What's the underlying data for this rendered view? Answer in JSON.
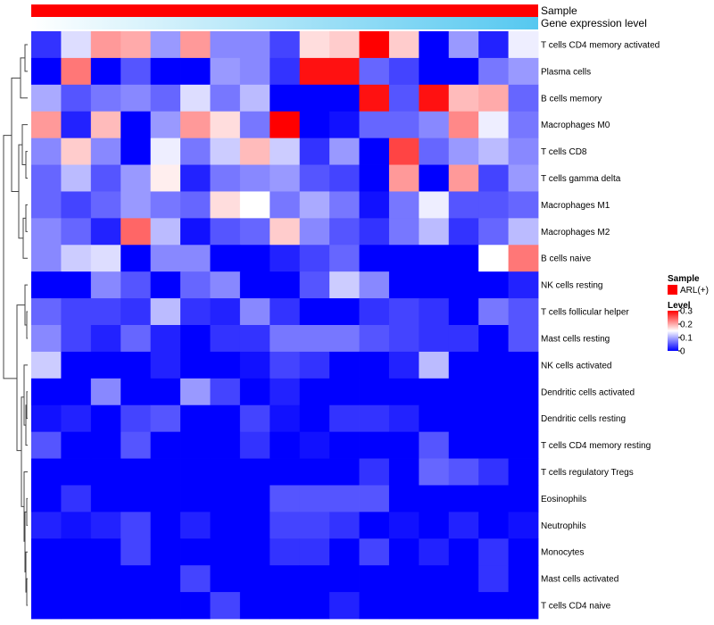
{
  "chart_data": {
    "type": "heatmap",
    "annotation_labels": {
      "sample": "Sample",
      "gene_expression": "Gene expression level"
    },
    "sample_annotation": {
      "title": "Sample",
      "entry": "ARL(+)",
      "color": "#ff0000"
    },
    "gene_expression_gradient": [
      "#ffffff",
      "#55c8f0"
    ],
    "legend": {
      "title": "Level",
      "ticks": [
        "0.3",
        "0.2",
        "0.1",
        "0"
      ],
      "tick_values": [
        0.3,
        0.2,
        0.1,
        0
      ],
      "range": [
        0,
        0.3
      ],
      "colors": {
        "low": "#0000ff",
        "mid": "#ffffff",
        "high": "#ff0000"
      }
    },
    "rows": [
      "T cells CD4 memory activated",
      "Plasma cells",
      "B cells memory",
      "Macrophages M0",
      "T cells CD8",
      "T cells gamma delta",
      "Macrophages M1",
      "Macrophages M2",
      "B cells naive",
      "NK cells resting",
      "T cells follicular helper",
      "Mast cells resting",
      "NK cells activated",
      "Dendritic cells activated",
      "Dendritic cells resting",
      "T cells CD4 memory resting",
      "T cells regulatory  Tregs",
      "Eosinophils",
      "Neutrophils",
      "Monocytes",
      "Mast cells activated",
      "T cells CD4 naive"
    ],
    "values": [
      [
        0.03,
        0.13,
        0.21,
        0.2,
        0.09,
        0.21,
        0.08,
        0.08,
        0.04,
        0.17,
        0.18,
        0.3,
        0.18,
        0.0,
        0.09,
        0.02,
        0.14
      ],
      [
        0.0,
        0.23,
        0.0,
        0.05,
        0.0,
        0.0,
        0.09,
        0.08,
        0.03,
        0.29,
        0.29,
        0.06,
        0.04,
        0.0,
        0.0,
        0.07,
        0.09
      ],
      [
        0.1,
        0.05,
        0.07,
        0.08,
        0.06,
        0.13,
        0.07,
        0.11,
        0.0,
        0.0,
        0.0,
        0.29,
        0.05,
        0.29,
        0.19,
        0.2,
        0.06
      ],
      [
        0.21,
        0.02,
        0.19,
        0.0,
        0.09,
        0.21,
        0.17,
        0.07,
        0.3,
        0.0,
        0.01,
        0.06,
        0.06,
        0.08,
        0.22,
        0.14,
        0.07
      ],
      [
        0.08,
        0.18,
        0.08,
        0.0,
        0.14,
        0.07,
        0.12,
        0.19,
        0.12,
        0.03,
        0.09,
        0.0,
        0.26,
        0.06,
        0.09,
        0.11,
        0.08
      ],
      [
        0.06,
        0.11,
        0.05,
        0.09,
        0.16,
        0.02,
        0.07,
        0.08,
        0.09,
        0.05,
        0.04,
        0.0,
        0.21,
        0.0,
        0.21,
        0.04,
        0.09
      ],
      [
        0.06,
        0.04,
        0.06,
        0.09,
        0.07,
        0.06,
        0.17,
        0.15,
        0.07,
        0.1,
        0.07,
        0.01,
        0.07,
        0.14,
        0.05,
        0.05,
        0.06
      ],
      [
        0.08,
        0.06,
        0.02,
        0.24,
        0.11,
        0.01,
        0.05,
        0.06,
        0.18,
        0.08,
        0.05,
        0.03,
        0.07,
        0.11,
        0.03,
        0.06,
        0.11
      ],
      [
        0.08,
        0.12,
        0.13,
        0.0,
        0.08,
        0.08,
        0.0,
        0.0,
        0.02,
        0.04,
        0.06,
        0.0,
        0.0,
        0.0,
        0.0,
        0.15,
        0.23
      ],
      [
        0.0,
        0.0,
        0.08,
        0.05,
        0.0,
        0.06,
        0.08,
        0.0,
        0.0,
        0.05,
        0.12,
        0.08,
        0.0,
        0.0,
        0.0,
        0.0,
        0.02
      ],
      [
        0.06,
        0.04,
        0.04,
        0.03,
        0.11,
        0.03,
        0.02,
        0.08,
        0.03,
        0.0,
        0.0,
        0.03,
        0.04,
        0.03,
        0.0,
        0.07,
        0.05
      ],
      [
        0.08,
        0.04,
        0.02,
        0.06,
        0.02,
        0.0,
        0.03,
        0.03,
        0.07,
        0.07,
        0.07,
        0.05,
        0.04,
        0.03,
        0.03,
        0.0,
        0.05
      ],
      [
        0.12,
        0.0,
        0.0,
        0.0,
        0.02,
        0.0,
        0.0,
        0.01,
        0.04,
        0.03,
        0.0,
        0.0,
        0.02,
        0.11,
        0.0,
        0.0,
        0.0
      ],
      [
        0.0,
        0.0,
        0.08,
        0.0,
        0.0,
        0.09,
        0.04,
        0.0,
        0.02,
        0.0,
        0.0,
        0.0,
        0.0,
        0.0,
        0.0,
        0.0,
        0.0
      ],
      [
        0.01,
        0.02,
        0.0,
        0.04,
        0.05,
        0.0,
        0.0,
        0.04,
        0.01,
        0.0,
        0.03,
        0.03,
        0.02,
        0.0,
        0.0,
        0.0,
        0.0
      ],
      [
        0.05,
        0.0,
        0.0,
        0.05,
        0.0,
        0.0,
        0.0,
        0.03,
        0.0,
        0.01,
        0.0,
        0.0,
        0.0,
        0.05,
        0.0,
        0.0,
        0.0
      ],
      [
        0.0,
        0.0,
        0.0,
        0.0,
        0.0,
        0.0,
        0.0,
        0.0,
        0.0,
        0.0,
        0.0,
        0.03,
        0.0,
        0.06,
        0.05,
        0.03,
        0.0
      ],
      [
        0.0,
        0.03,
        0.0,
        0.0,
        0.0,
        0.0,
        0.0,
        0.0,
        0.05,
        0.05,
        0.05,
        0.05,
        0.0,
        0.0,
        0.0,
        0.0,
        0.0
      ],
      [
        0.02,
        0.01,
        0.02,
        0.04,
        0.0,
        0.02,
        0.0,
        0.0,
        0.04,
        0.04,
        0.03,
        0.0,
        0.01,
        0.0,
        0.02,
        0.0,
        0.01
      ],
      [
        0.0,
        0.0,
        0.0,
        0.04,
        0.0,
        0.0,
        0.0,
        0.0,
        0.03,
        0.03,
        0.0,
        0.04,
        0.0,
        0.02,
        0.0,
        0.03,
        0.0
      ],
      [
        0.0,
        0.0,
        0.0,
        0.0,
        0.0,
        0.04,
        0.0,
        0.0,
        0.0,
        0.0,
        0.0,
        0.0,
        0.0,
        0.0,
        0.0,
        0.03,
        0.0
      ],
      [
        0.0,
        0.0,
        0.0,
        0.0,
        0.0,
        0.0,
        0.04,
        0.0,
        0.0,
        0.0,
        0.02,
        0.0,
        0.0,
        0.0,
        0.0,
        0.0,
        0.0
      ]
    ]
  }
}
